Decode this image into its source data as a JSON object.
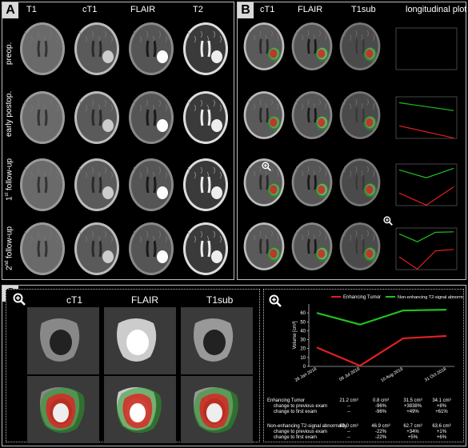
{
  "panel_a": {
    "label": "A",
    "columns": [
      "T1",
      "cT1",
      "FLAIR",
      "T2"
    ],
    "rows": [
      "preop.",
      "early postop.",
      "1st follow-up",
      "2nd follow-up"
    ],
    "row_sup": [
      "",
      "",
      "st",
      "nd"
    ],
    "row_main": [
      "preop.",
      "early postop.",
      "1 follow-up",
      "2 follow-up"
    ]
  },
  "panel_b": {
    "label": "B",
    "columns": [
      "cT1",
      "FLAIR",
      "T1sub",
      "longitudinal plot"
    ]
  },
  "panel_c": {
    "label": "C",
    "columns": [
      "cT1",
      "FLAIR",
      "T1sub"
    ],
    "legend": [
      "Enhancing Tumor",
      "Non-enhancing T2-signal abnormality"
    ],
    "ylabel": "Volume [cm³]",
    "dates": [
      "28 Jan 2018",
      "06 Jul 2018",
      "10 Aug 2018",
      "31 Oct 2018"
    ],
    "table": {
      "et_header": "Enhancing Tumor",
      "et_sub1": "change to previous exam",
      "et_sub2": "change to first exam",
      "ne_header": "Non-enhancing T2-signal abnormality",
      "ne_sub1": "change to previous exam",
      "ne_sub2": "change to first exam",
      "et_values": [
        "21.2 cm³",
        "0.8 cm³",
        "31.5 cm³",
        "34.1 cm³"
      ],
      "et_prev": [
        "--",
        "-96%",
        "+3838%",
        "+8%"
      ],
      "et_first": [
        "--",
        "-96%",
        "+49%",
        "+61%"
      ],
      "ne_values": [
        "60.0 cm³",
        "46.9 cm³",
        "62.7 cm³",
        "63.6 cm³"
      ],
      "ne_prev": [
        "--",
        "-22%",
        "+34%",
        "+1%"
      ],
      "ne_first": [
        "--",
        "-22%",
        "+5%",
        "+6%"
      ]
    }
  },
  "chart_data": {
    "type": "line",
    "categories": [
      "28 Jan 2018",
      "06 Jul 2018",
      "10 Aug 2018",
      "31 Oct 2018"
    ],
    "series": [
      {
        "name": "Enhancing Tumor",
        "color": "#e02020",
        "values": [
          21.2,
          0.8,
          31.5,
          34.1
        ]
      },
      {
        "name": "Non-enhancing T2-signal abnormality",
        "color": "#20c020",
        "values": [
          60.0,
          46.9,
          62.7,
          63.6
        ]
      }
    ],
    "ylabel": "Volume [cm³]",
    "ylim": [
      0,
      70
    ],
    "yticks": [
      0,
      10,
      20,
      30,
      40,
      50,
      60
    ],
    "legend": "top",
    "grid": false
  },
  "icons": {
    "zoom": "zoom-in-icon"
  }
}
